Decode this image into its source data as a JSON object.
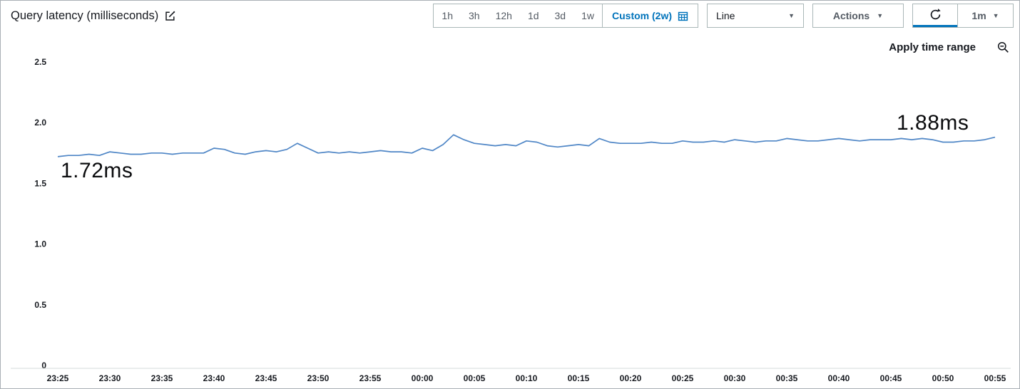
{
  "icons": {
    "caret_down": "▼"
  },
  "header": {
    "title": "Query latency (milliseconds)",
    "time_ranges": [
      "1h",
      "3h",
      "12h",
      "1d",
      "3d",
      "1w"
    ],
    "custom_range_label": "Custom (2w)",
    "chart_type_selected": "Line",
    "actions_label": "Actions",
    "refresh_interval": "1m"
  },
  "chart_overlay": {
    "apply_time_range_label": "Apply time range",
    "start_annotation": "1.72ms",
    "end_annotation": "1.88ms"
  },
  "chart_data": {
    "type": "line",
    "title": "Query latency (milliseconds)",
    "unit": "ms",
    "x_start": "23:25",
    "x_end": "00:55",
    "x_step_minutes": 1,
    "xtick_labels": [
      "23:25",
      "23:30",
      "23:35",
      "23:40",
      "23:45",
      "23:50",
      "23:55",
      "00:00",
      "00:05",
      "00:10",
      "00:15",
      "00:20",
      "00:25",
      "00:30",
      "00:35",
      "00:40",
      "00:45",
      "00:50",
      "00:55"
    ],
    "xtick_every_points": 5,
    "ylim": [
      0,
      2.5
    ],
    "ytick_values": [
      0,
      0.5,
      1,
      1.5,
      2,
      2.5
    ],
    "ytick_labels": [
      "0",
      "0.5",
      "1.0",
      "1.5",
      "2.0",
      "2.5"
    ],
    "grid": false,
    "legend": "none",
    "line_color": "#4f86c6",
    "annotations": [
      {
        "label": "1.72ms",
        "at": "23:25",
        "value": 1.72
      },
      {
        "label": "1.88ms",
        "at": "00:55",
        "value": 1.88
      }
    ],
    "values": [
      1.72,
      1.73,
      1.73,
      1.74,
      1.73,
      1.76,
      1.75,
      1.74,
      1.74,
      1.75,
      1.75,
      1.74,
      1.75,
      1.75,
      1.75,
      1.79,
      1.78,
      1.75,
      1.74,
      1.76,
      1.77,
      1.76,
      1.78,
      1.83,
      1.79,
      1.75,
      1.76,
      1.75,
      1.76,
      1.75,
      1.76,
      1.77,
      1.76,
      1.76,
      1.75,
      1.79,
      1.77,
      1.82,
      1.9,
      1.86,
      1.83,
      1.82,
      1.81,
      1.82,
      1.81,
      1.85,
      1.84,
      1.81,
      1.8,
      1.81,
      1.82,
      1.81,
      1.87,
      1.84,
      1.83,
      1.83,
      1.83,
      1.84,
      1.83,
      1.83,
      1.85,
      1.84,
      1.84,
      1.85,
      1.84,
      1.86,
      1.85,
      1.84,
      1.85,
      1.85,
      1.87,
      1.86,
      1.85,
      1.85,
      1.86,
      1.87,
      1.86,
      1.85,
      1.86,
      1.86,
      1.86,
      1.87,
      1.86,
      1.87,
      1.86,
      1.84,
      1.84,
      1.85,
      1.85,
      1.86,
      1.88
    ]
  }
}
